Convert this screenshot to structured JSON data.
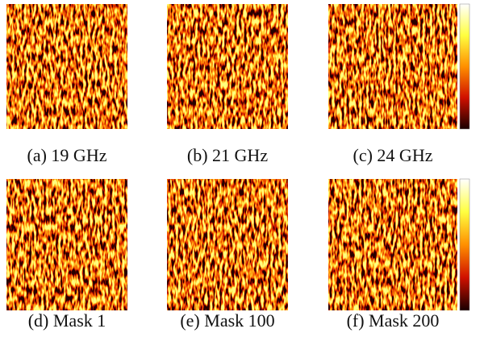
{
  "panels": [
    {
      "caption": "(a) 19 GHz"
    },
    {
      "caption": "(b) 21 GHz"
    },
    {
      "caption": "(c) 24 GHz"
    },
    {
      "caption": "(d) Mask 1"
    },
    {
      "caption": "(e) Mask 100"
    },
    {
      "caption": "(f) Mask 200"
    }
  ]
}
